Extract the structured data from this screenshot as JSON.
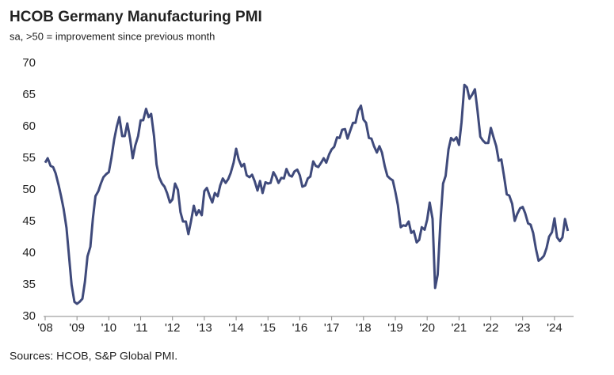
{
  "chart_data": {
    "type": "line",
    "title": "HCOB Germany Manufacturing PMI",
    "subtitle": "sa, >50 = improvement since previous month",
    "source": "Sources: HCOB, S&P Global PMI.",
    "xlim": [
      2008,
      2024.6
    ],
    "xticks": [
      {
        "value": 2008,
        "label": "'08"
      },
      {
        "value": 2009,
        "label": "'09"
      },
      {
        "value": 2010,
        "label": "'10"
      },
      {
        "value": 2011,
        "label": "'11"
      },
      {
        "value": 2012,
        "label": "'12"
      },
      {
        "value": 2013,
        "label": "'13"
      },
      {
        "value": 2014,
        "label": "'14"
      },
      {
        "value": 2015,
        "label": "'15"
      },
      {
        "value": 2016,
        "label": "'16"
      },
      {
        "value": 2017,
        "label": "'17"
      },
      {
        "value": 2018,
        "label": "'18"
      },
      {
        "value": 2019,
        "label": "'19"
      },
      {
        "value": 2020,
        "label": "'20"
      },
      {
        "value": 2021,
        "label": "'21"
      },
      {
        "value": 2022,
        "label": "'22"
      },
      {
        "value": 2023,
        "label": "'23"
      },
      {
        "value": 2024,
        "label": "'24"
      }
    ],
    "ylim": [
      30,
      70
    ],
    "yticks": [
      30,
      35,
      40,
      45,
      50,
      55,
      60,
      65,
      70
    ],
    "grid": false,
    "x": [
      2008.0,
      2008.08,
      2008.17,
      2008.25,
      2008.33,
      2008.42,
      2008.5,
      2008.58,
      2008.67,
      2008.75,
      2008.83,
      2008.92,
      2009.0,
      2009.08,
      2009.17,
      2009.25,
      2009.33,
      2009.42,
      2009.5,
      2009.58,
      2009.67,
      2009.75,
      2009.83,
      2009.92,
      2010.0,
      2010.08,
      2010.17,
      2010.25,
      2010.33,
      2010.42,
      2010.5,
      2010.58,
      2010.67,
      2010.75,
      2010.83,
      2010.92,
      2011.0,
      2011.08,
      2011.17,
      2011.25,
      2011.33,
      2011.42,
      2011.5,
      2011.58,
      2011.67,
      2011.75,
      2011.83,
      2011.92,
      2012.0,
      2012.08,
      2012.17,
      2012.25,
      2012.33,
      2012.42,
      2012.5,
      2012.58,
      2012.67,
      2012.75,
      2012.83,
      2012.92,
      2013.0,
      2013.08,
      2013.17,
      2013.25,
      2013.33,
      2013.42,
      2013.5,
      2013.58,
      2013.67,
      2013.75,
      2013.83,
      2013.92,
      2014.0,
      2014.08,
      2014.17,
      2014.25,
      2014.33,
      2014.42,
      2014.5,
      2014.58,
      2014.67,
      2014.75,
      2014.83,
      2014.92,
      2015.0,
      2015.08,
      2015.17,
      2015.25,
      2015.33,
      2015.42,
      2015.5,
      2015.58,
      2015.67,
      2015.75,
      2015.83,
      2015.92,
      2016.0,
      2016.08,
      2016.17,
      2016.25,
      2016.33,
      2016.42,
      2016.5,
      2016.58,
      2016.67,
      2016.75,
      2016.83,
      2016.92,
      2017.0,
      2017.08,
      2017.17,
      2017.25,
      2017.33,
      2017.42,
      2017.5,
      2017.58,
      2017.67,
      2017.75,
      2017.83,
      2017.92,
      2018.0,
      2018.08,
      2018.17,
      2018.25,
      2018.33,
      2018.42,
      2018.5,
      2018.58,
      2018.67,
      2018.75,
      2018.83,
      2018.92,
      2019.0,
      2019.08,
      2019.17,
      2019.25,
      2019.33,
      2019.42,
      2019.5,
      2019.58,
      2019.67,
      2019.75,
      2019.83,
      2019.92,
      2020.0,
      2020.08,
      2020.17,
      2020.25,
      2020.33,
      2020.42,
      2020.5,
      2020.58,
      2020.67,
      2020.75,
      2020.83,
      2020.92,
      2021.0,
      2021.08,
      2021.17,
      2021.25,
      2021.33,
      2021.42,
      2021.5,
      2021.58,
      2021.67,
      2021.75,
      2021.83,
      2021.92,
      2022.0,
      2022.08,
      2022.17,
      2022.25,
      2022.33,
      2022.42,
      2022.5,
      2022.58,
      2022.67,
      2022.75,
      2022.83,
      2022.92,
      2023.0,
      2023.08,
      2023.17,
      2023.25,
      2023.33,
      2023.42,
      2023.5,
      2023.58,
      2023.67,
      2023.75,
      2023.83,
      2023.92,
      2024.0,
      2024.08,
      2024.17,
      2024.25,
      2024.33,
      2024.42
    ],
    "series": [
      {
        "color": "#3f4a7b",
        "values": [
          54.3,
          55.0,
          53.8,
          53.6,
          52.6,
          50.8,
          49.0,
          47.0,
          44.0,
          39.5,
          35.0,
          32.3,
          32.0,
          32.3,
          32.8,
          35.5,
          39.5,
          41.0,
          45.5,
          49.0,
          49.8,
          51.0,
          52.0,
          52.5,
          52.8,
          55.0,
          58.0,
          60.0,
          61.5,
          58.5,
          58.5,
          60.5,
          58.0,
          55.0,
          57.0,
          58.5,
          61.0,
          61.0,
          62.8,
          61.5,
          62.0,
          58.5,
          54.0,
          52.0,
          51.0,
          50.5,
          49.5,
          48.0,
          48.5,
          51.0,
          50.0,
          46.5,
          45.0,
          45.0,
          43.0,
          45.0,
          47.5,
          46.0,
          46.8,
          46.0,
          49.8,
          50.3,
          49.0,
          48.0,
          49.5,
          49.0,
          50.7,
          51.8,
          51.1,
          51.7,
          52.7,
          54.3,
          56.5,
          54.8,
          53.7,
          54.1,
          52.3,
          52.0,
          52.4,
          51.4,
          49.9,
          51.4,
          49.5,
          51.2,
          51.0,
          51.1,
          52.8,
          52.1,
          51.1,
          51.9,
          51.8,
          53.3,
          52.3,
          52.1,
          52.9,
          53.2,
          52.3,
          50.5,
          50.7,
          51.8,
          52.1,
          54.5,
          53.8,
          53.6,
          54.3,
          55.0,
          54.3,
          55.6,
          56.4,
          56.8,
          58.3,
          58.2,
          59.5,
          59.6,
          58.1,
          59.3,
          60.6,
          60.6,
          62.5,
          63.3,
          61.1,
          60.6,
          58.2,
          58.1,
          56.9,
          55.9,
          56.9,
          55.9,
          53.7,
          52.2,
          51.8,
          51.5,
          49.7,
          47.6,
          44.1,
          44.4,
          44.3,
          45.0,
          43.2,
          43.5,
          41.7,
          42.1,
          44.1,
          43.7,
          45.3,
          48.0,
          45.4,
          34.5,
          36.6,
          45.2,
          51.0,
          52.2,
          56.4,
          58.2,
          57.8,
          58.3,
          57.1,
          60.7,
          66.6,
          66.2,
          64.4,
          65.1,
          65.9,
          62.6,
          58.4,
          57.8,
          57.4,
          57.4,
          59.8,
          58.4,
          56.9,
          54.6,
          54.8,
          52.0,
          49.3,
          49.1,
          47.8,
          45.1,
          46.2,
          47.1,
          47.3,
          46.3,
          44.7,
          44.5,
          43.2,
          40.6,
          38.8,
          39.1,
          39.6,
          40.8,
          42.6,
          43.3,
          45.5,
          42.5,
          41.9,
          42.5,
          45.4,
          43.5
        ]
      }
    ]
  }
}
